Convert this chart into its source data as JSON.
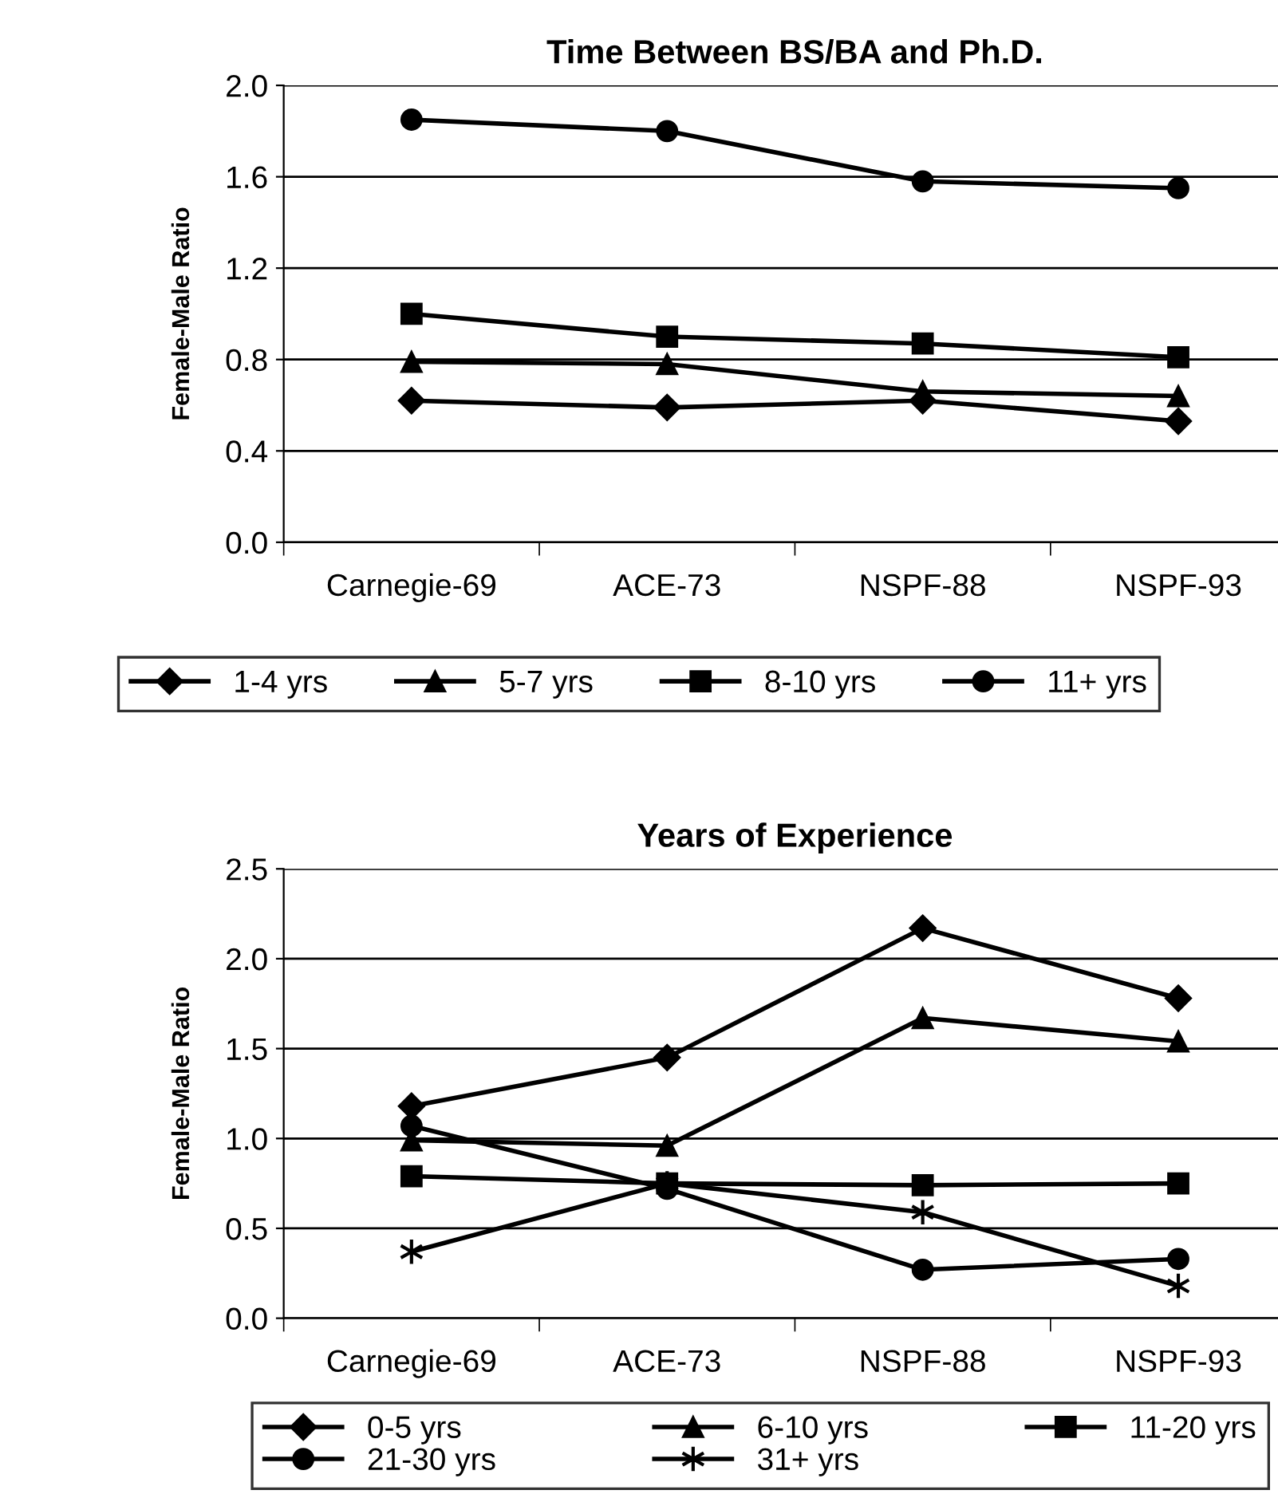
{
  "chart_data": [
    {
      "type": "line",
      "title": "Time Between BS/BA and Ph.D.",
      "ylabel": "Female-Male Ratio",
      "categories": [
        "Carnegie-69",
        "ACE-73",
        "NSPF-88",
        "NSPF-93"
      ],
      "ylim": [
        0,
        2.0
      ],
      "yticks": [
        {
          "value": 0,
          "label": "0.0"
        },
        {
          "value": 0.4,
          "label": "0.4"
        },
        {
          "value": 0.8,
          "label": "0.8"
        },
        {
          "value": 1.2,
          "label": "1.2"
        },
        {
          "value": 1.6,
          "label": "1.6"
        },
        {
          "value": 2.0,
          "label": "2.0"
        }
      ],
      "grid": "y",
      "legend": "bottom",
      "line_style": "solid",
      "series": [
        {
          "name": "1-4 yrs",
          "color": "#000000",
          "marker": "diamond",
          "values": [
            0.62,
            0.59,
            0.62,
            0.53
          ]
        },
        {
          "name": "5-7 yrs",
          "color": "#000000",
          "marker": "triangle",
          "values": [
            0.79,
            0.78,
            0.66,
            0.64
          ]
        },
        {
          "name": "8-10 yrs",
          "color": "#000000",
          "marker": "square",
          "values": [
            1.0,
            0.9,
            0.87,
            0.81
          ]
        },
        {
          "name": "11+ yrs",
          "color": "#000000",
          "marker": "circle",
          "values": [
            1.85,
            1.8,
            1.58,
            1.55
          ]
        }
      ]
    },
    {
      "type": "line",
      "title": "Years of Experience",
      "ylabel": "Female-Male Ratio",
      "categories": [
        "Carnegie-69",
        "ACE-73",
        "NSPF-88",
        "NSPF-93"
      ],
      "ylim": [
        0,
        2.5
      ],
      "yticks": [
        {
          "value": 0,
          "label": "0.0"
        },
        {
          "value": 0.5,
          "label": "0.5"
        },
        {
          "value": 1.0,
          "label": "1.0"
        },
        {
          "value": 1.5,
          "label": "1.5"
        },
        {
          "value": 2.0,
          "label": "2.0"
        },
        {
          "value": 2.5,
          "label": "2.5"
        }
      ],
      "grid": "y",
      "legend": "bottom",
      "line_style": "solid",
      "series": [
        {
          "name": "0-5 yrs",
          "color": "#000000",
          "marker": "diamond",
          "values": [
            1.18,
            1.45,
            2.17,
            1.78
          ]
        },
        {
          "name": "6-10 yrs",
          "color": "#000000",
          "marker": "triangle",
          "values": [
            0.99,
            0.96,
            1.67,
            1.54
          ]
        },
        {
          "name": "11-20 yrs",
          "color": "#000000",
          "marker": "square",
          "values": [
            0.79,
            0.75,
            0.74,
            0.75
          ]
        },
        {
          "name": "21-30 yrs",
          "color": "#000000",
          "marker": "circle",
          "values": [
            1.07,
            0.72,
            0.27,
            0.33
          ]
        },
        {
          "name": "31+ yrs",
          "color": "#000000",
          "marker": "cross",
          "values": [
            0.37,
            0.75,
            0.59,
            0.18
          ]
        }
      ]
    }
  ]
}
